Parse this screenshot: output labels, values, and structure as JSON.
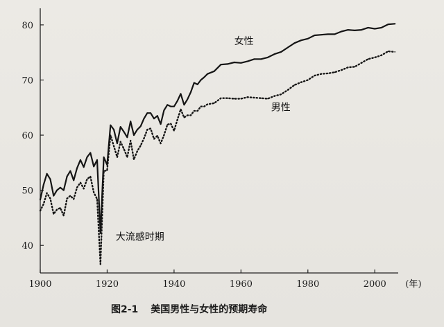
{
  "figure": {
    "number": "图2-1",
    "title": "美国男性与女性的预期寿命"
  },
  "chart_data": {
    "type": "line",
    "title": "美国男性与女性的预期寿命",
    "xlabel": "(年)",
    "ylabel": "",
    "xlim": [
      1900,
      2007
    ],
    "ylim": [
      35,
      82
    ],
    "xticks": [
      1900,
      1920,
      1940,
      1960,
      1980,
      2000
    ],
    "yticks": [
      40,
      50,
      60,
      70,
      80
    ],
    "grid": false,
    "annotations": [
      {
        "text": "大流感时期",
        "x": 1918,
        "y": 41
      }
    ],
    "series": [
      {
        "name": "女性",
        "style": "solid",
        "x": [
          1900,
          1901,
          1902,
          1903,
          1904,
          1905,
          1906,
          1907,
          1908,
          1909,
          1910,
          1911,
          1912,
          1913,
          1914,
          1915,
          1916,
          1917,
          1918,
          1919,
          1920,
          1921,
          1922,
          1923,
          1924,
          1925,
          1926,
          1927,
          1928,
          1929,
          1930,
          1931,
          1932,
          1933,
          1934,
          1935,
          1936,
          1937,
          1938,
          1939,
          1940,
          1941,
          1942,
          1943,
          1944,
          1945,
          1946,
          1947,
          1948,
          1949,
          1950,
          1952,
          1954,
          1956,
          1958,
          1960,
          1962,
          1964,
          1966,
          1968,
          1970,
          1972,
          1974,
          1976,
          1978,
          1980,
          1982,
          1984,
          1986,
          1988,
          1990,
          1992,
          1994,
          1996,
          1998,
          2000,
          2002,
          2004,
          2006
        ],
        "values": [
          48.3,
          51.0,
          53.0,
          52.0,
          49.0,
          50.0,
          50.5,
          50.0,
          52.5,
          53.5,
          51.8,
          54.0,
          55.5,
          54.2,
          56.0,
          56.8,
          54.3,
          55.5,
          42.2,
          56.0,
          54.6,
          61.8,
          61.0,
          58.5,
          61.5,
          60.6,
          59.6,
          62.5,
          60.0,
          61.0,
          61.6,
          63.0,
          64.0,
          64.0,
          63.0,
          63.5,
          62.0,
          64.5,
          65.5,
          65.2,
          65.2,
          66.2,
          67.5,
          65.5,
          66.5,
          67.8,
          69.5,
          69.2,
          70.0,
          70.5,
          71.1,
          71.6,
          72.8,
          72.9,
          73.2,
          73.1,
          73.4,
          73.8,
          73.8,
          74.1,
          74.7,
          75.1,
          75.9,
          76.7,
          77.2,
          77.5,
          78.1,
          78.2,
          78.3,
          78.3,
          78.8,
          79.1,
          79.0,
          79.1,
          79.5,
          79.3,
          79.5,
          80.1,
          80.2
        ]
      },
      {
        "name": "男性",
        "style": "dotted",
        "x": [
          1900,
          1901,
          1902,
          1903,
          1904,
          1905,
          1906,
          1907,
          1908,
          1909,
          1910,
          1911,
          1912,
          1913,
          1914,
          1915,
          1916,
          1917,
          1918,
          1919,
          1920,
          1921,
          1922,
          1923,
          1924,
          1925,
          1926,
          1927,
          1928,
          1929,
          1930,
          1931,
          1932,
          1933,
          1934,
          1935,
          1936,
          1937,
          1938,
          1939,
          1940,
          1941,
          1942,
          1943,
          1944,
          1945,
          1946,
          1947,
          1948,
          1949,
          1950,
          1952,
          1954,
          1956,
          1958,
          1960,
          1962,
          1964,
          1966,
          1968,
          1970,
          1972,
          1974,
          1976,
          1978,
          1980,
          1982,
          1984,
          1986,
          1988,
          1990,
          1992,
          1994,
          1996,
          1998,
          2000,
          2002,
          2004,
          2006
        ],
        "values": [
          46.3,
          47.5,
          49.5,
          48.5,
          45.7,
          46.5,
          46.8,
          45.4,
          48.5,
          49.0,
          48.4,
          50.5,
          51.4,
          50.3,
          52.0,
          52.5,
          49.6,
          48.4,
          36.6,
          53.5,
          53.6,
          60.0,
          58.0,
          56.0,
          58.8,
          57.5,
          56.0,
          59.0,
          55.6,
          57.1,
          58.1,
          59.4,
          61.0,
          61.2,
          59.3,
          59.9,
          58.5,
          60.0,
          61.9,
          62.1,
          60.8,
          62.8,
          64.7,
          63.2,
          63.6,
          63.6,
          64.4,
          64.4,
          65.2,
          65.2,
          65.6,
          65.8,
          66.7,
          66.7,
          66.6,
          66.6,
          66.9,
          66.8,
          66.7,
          66.6,
          67.1,
          67.4,
          68.2,
          69.1,
          69.6,
          70.0,
          70.8,
          71.1,
          71.2,
          71.4,
          71.8,
          72.3,
          72.4,
          73.1,
          73.8,
          74.1,
          74.5,
          75.2,
          75.1
        ]
      }
    ],
    "series_labels": [
      {
        "text": "女性",
        "x": 1958,
        "y": 76.5
      },
      {
        "text": "男性",
        "x": 1969,
        "y": 64.5
      }
    ]
  }
}
